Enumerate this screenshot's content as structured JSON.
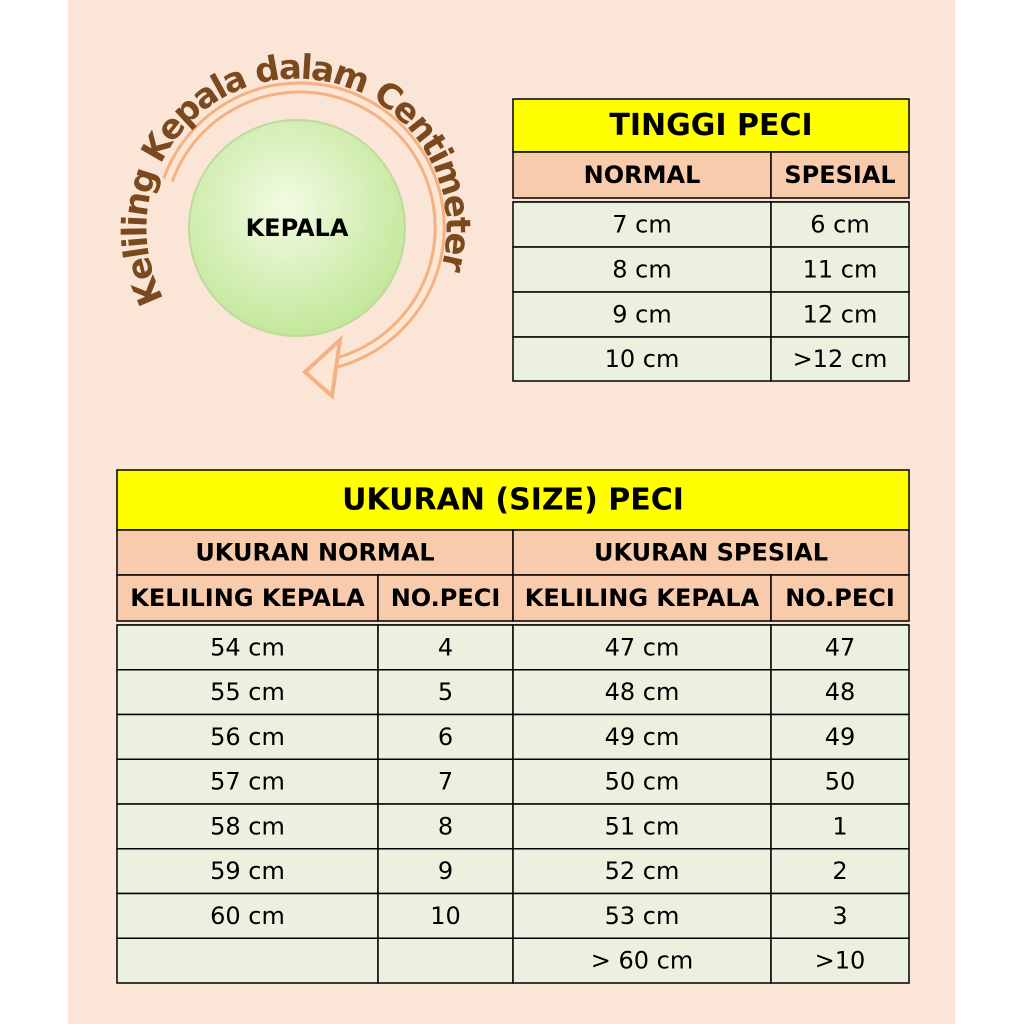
{
  "diagram": {
    "arc_label": "Keliling Kepala dalam Centimeter",
    "center_label": "KEPALA"
  },
  "height_table": {
    "title": "TINGGI PECI",
    "headers": [
      "NORMAL",
      "SPESIAL"
    ],
    "rows": [
      [
        "7 cm",
        "6 cm"
      ],
      [
        "8 cm",
        "11 cm"
      ],
      [
        "9 cm",
        "12 cm"
      ],
      [
        "10 cm",
        ">12 cm"
      ]
    ]
  },
  "size_table": {
    "title": "UKURAN (SIZE) PECI",
    "groups": [
      "UKURAN NORMAL",
      "UKURAN SPESIAL"
    ],
    "headers": [
      "KELILING KEPALA",
      "NO.PECI",
      "KELILING KEPALA",
      "NO.PECI"
    ],
    "rows": [
      [
        "54 cm",
        "4",
        "47 cm",
        "47"
      ],
      [
        "55 cm",
        "5",
        "48 cm",
        "48"
      ],
      [
        "56 cm",
        "6",
        "49 cm",
        "49"
      ],
      [
        "57 cm",
        "7",
        "50 cm",
        "50"
      ],
      [
        "58 cm",
        "8",
        "51 cm",
        "1"
      ],
      [
        "59 cm",
        "9",
        "52 cm",
        "2"
      ],
      [
        "60 cm",
        "10",
        "53 cm",
        "3"
      ],
      [
        null,
        null,
        "> 60 cm",
        ">10"
      ]
    ]
  }
}
